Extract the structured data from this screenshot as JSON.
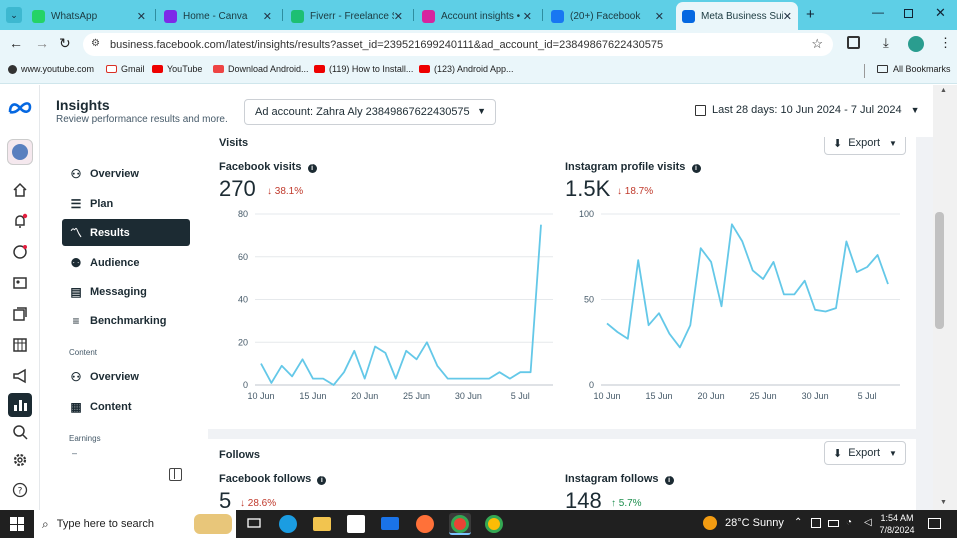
{
  "browser": {
    "tabs": [
      {
        "title": "WhatsApp",
        "icon": "whatsapp-icon",
        "color": "#25d366"
      },
      {
        "title": "Home - Canva",
        "icon": "canva-icon",
        "color": "#7d2ae8"
      },
      {
        "title": "Fiverr - Freelance Se",
        "icon": "fiverr-icon",
        "color": "#1dbf73"
      },
      {
        "title": "Account insights • In",
        "icon": "instagram-icon",
        "color": "#d6249f"
      },
      {
        "title": "(20+) Facebook",
        "icon": "facebook-icon",
        "color": "#1877f2"
      },
      {
        "title": "Meta Business Suite",
        "icon": "meta-icon",
        "color": "#0668e1"
      }
    ],
    "url": "business.facebook.com/latest/insights/results?asset_id=239521699240111&ad_account_id=23849867622430575",
    "bookmarks": [
      {
        "label": "www.youtube.com",
        "icon": "youtube-icon"
      },
      {
        "label": "Gmail",
        "icon": "gmail-icon"
      },
      {
        "label": "YouTube",
        "icon": "youtube-icon"
      },
      {
        "label": "Download Android...",
        "icon": "android-icon"
      },
      {
        "label": "(119) How to Install...",
        "icon": "youtube-icon"
      },
      {
        "label": "(123) Android App...",
        "icon": "youtube-icon"
      }
    ],
    "all_bookmarks": "All Bookmarks"
  },
  "header": {
    "title": "Insights",
    "subtitle": "Review performance results and more.",
    "ad_account": "Ad account: Zahra Aly 23849867622430575",
    "date_range": "Last 28 days: 10 Jun 2024 - 7 Jul 2024"
  },
  "sidebar": {
    "items": [
      {
        "label": "Overview",
        "icon": "overview-icon"
      },
      {
        "label": "Plan",
        "icon": "plan-icon"
      },
      {
        "label": "Results",
        "icon": "results-icon",
        "selected": true
      },
      {
        "label": "Audience",
        "icon": "audience-icon"
      },
      {
        "label": "Messaging",
        "icon": "messaging-icon"
      },
      {
        "label": "Benchmarking",
        "icon": "benchmarking-icon"
      }
    ],
    "content_heading": "Content",
    "content_items": [
      {
        "label": "Overview",
        "icon": "overview-icon"
      },
      {
        "label": "Content",
        "icon": "content-table-icon"
      }
    ],
    "earnings_heading": "Earnings",
    "earnings_dash": "–"
  },
  "visits": {
    "section_title": "Visits",
    "export_label": "Export",
    "facebook": {
      "title": "Facebook visits",
      "value": "270",
      "change": "38.1%",
      "direction": "down"
    },
    "instagram": {
      "title": "Instagram profile visits",
      "value": "1.5K",
      "change": "18.7%",
      "direction": "down"
    }
  },
  "follows": {
    "section_title": "Follows",
    "export_label": "Export",
    "facebook": {
      "title": "Facebook follows",
      "value": "5",
      "change": "28.6%",
      "direction": "down"
    },
    "instagram": {
      "title": "Instagram follows",
      "value": "148",
      "change": "5.7%",
      "direction": "up"
    }
  },
  "chart_data": [
    {
      "type": "line",
      "title": "Facebook visits",
      "x_ticks": [
        "10 Jun",
        "15 Jun",
        "20 Jun",
        "25 Jun",
        "30 Jun",
        "5 Jul"
      ],
      "y_ticks": [
        "0",
        "20",
        "40",
        "60",
        "80"
      ],
      "ylim": [
        0,
        80
      ],
      "series": [
        {
          "values": [
            10,
            1,
            9,
            4,
            12,
            3,
            3,
            0,
            6,
            16,
            3,
            18,
            15,
            3,
            16,
            12,
            20,
            9,
            3,
            3,
            3,
            3,
            3,
            6,
            3,
            6,
            6,
            75
          ]
        }
      ]
    },
    {
      "type": "line",
      "title": "Instagram profile visits",
      "x_ticks": [
        "10 Jun",
        "15 Jun",
        "20 Jun",
        "25 Jun",
        "30 Jun",
        "5 Jul"
      ],
      "y_ticks": [
        "0",
        "50",
        "100"
      ],
      "ylim": [
        0,
        100
      ],
      "series": [
        {
          "values": [
            36,
            31,
            27,
            73,
            35,
            42,
            30,
            22,
            35,
            80,
            72,
            46,
            94,
            84,
            67,
            62,
            72,
            53,
            53,
            61,
            44,
            43,
            45,
            84,
            66,
            69,
            76,
            59
          ]
        }
      ]
    }
  ],
  "taskbar": {
    "search_placeholder": "Type here to search",
    "weather": "28°C  Sunny",
    "time": "1:54 AM",
    "date": "7/8/2024"
  },
  "colors": {
    "tabbar": "#5ecfe6",
    "chart_line": "#64c8e8",
    "down": "#c0392b",
    "up": "#1e8f4e",
    "selected_nav": "#1c2b33"
  }
}
